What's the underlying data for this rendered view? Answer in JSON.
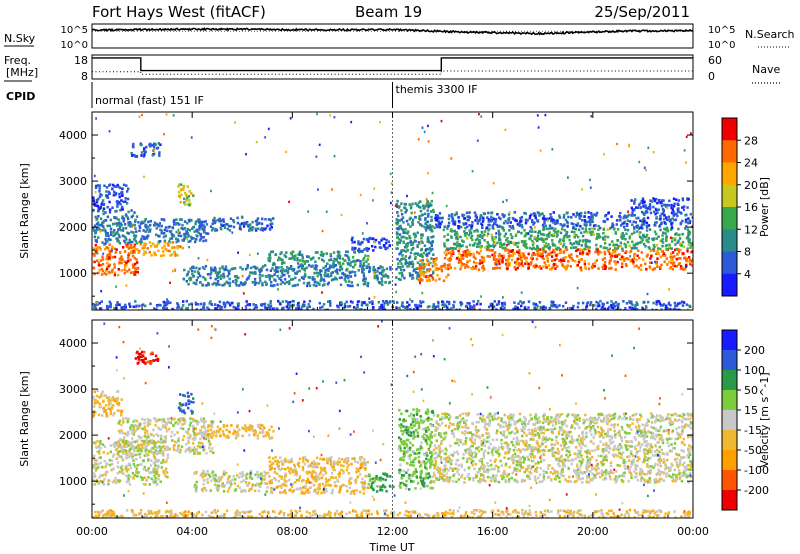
{
  "header": {
    "title": "Fort Hays West (fitACF)",
    "beam": "Beam 19",
    "date": "25/Sep/2011"
  },
  "panels": {
    "nsky_label": "N.Sky",
    "nsearch_label": "N.Search",
    "freq_label_1": "Freq.",
    "freq_label_2": "[MHz]",
    "nave_label": "Nave",
    "cpid_label": "CPID",
    "nsky_ticks": [
      "10^5",
      "10^0"
    ],
    "nsearch_ticks": [
      "10^5",
      "10^0"
    ],
    "freq_ticks": [
      "18",
      "8"
    ],
    "nave_ticks": [
      "60",
      "0"
    ],
    "cpid_segments": [
      {
        "label": "normal (fast) 151 IF",
        "start_hour": 0
      },
      {
        "label": "themis 3300 IF",
        "start_hour": 12
      }
    ]
  },
  "colorbars": {
    "power_label": "Power [dB]",
    "power_ticks": [
      "28",
      "24",
      "20",
      "16",
      "12",
      "8",
      "4"
    ],
    "velocity_label": "Velocity [m s^-1]",
    "velocity_ticks": [
      "200",
      "100",
      "50",
      "15",
      "-15",
      "-50",
      "-100",
      "-200"
    ]
  },
  "chart_data": [
    {
      "type": "line",
      "name_label": "N.Sky / N.Search",
      "x_unit": "hour",
      "xlim": [
        0,
        24
      ],
      "ylim": [
        0,
        5
      ],
      "series": [
        {
          "name": "N.Sky",
          "x": [
            0,
            3,
            6,
            9,
            12,
            15,
            18,
            21,
            24
          ],
          "values": [
            3.7,
            3.9,
            3.9,
            3.8,
            3.8,
            3.3,
            3.0,
            3.5,
            3.6
          ]
        },
        {
          "name": "N.Search",
          "x": [
            0,
            24
          ],
          "values": [
            3.5,
            3.5
          ]
        }
      ]
    },
    {
      "type": "line",
      "x_unit": "hour",
      "xlim": [
        0,
        24
      ],
      "series": [
        {
          "name": "Freq.",
          "ylim": [
            8,
            18
          ],
          "x": [
            0,
            1.95,
            1.95,
            13.95,
            13.95,
            24
          ],
          "values": [
            16.8,
            16.8,
            11.5,
            11.5,
            16.8,
            16.8
          ]
        },
        {
          "name": "Nave",
          "ylim": [
            0,
            60
          ],
          "x": [
            0,
            1.95,
            1.95,
            13.95,
            13.95,
            24
          ],
          "values": [
            18,
            18,
            12,
            12,
            20,
            20
          ]
        }
      ]
    },
    {
      "type": "heatmap",
      "quantity": "Power",
      "units": "dB",
      "xlabel": "Time UT",
      "ylabel": "Slant Range [km]",
      "xlim": [
        0,
        24
      ],
      "ylim": [
        200,
        4500
      ],
      "x_ticks": [
        "00:00",
        "04:00",
        "08:00",
        "12:00",
        "16:00",
        "20:00",
        "00:00"
      ],
      "y_ticks": [
        1000,
        2000,
        3000,
        4000
      ],
      "clim": [
        0,
        32
      ],
      "levels": [
        {
          "max": 4,
          "color": "#1a1aff"
        },
        {
          "max": 8,
          "color": "#2c5ad8"
        },
        {
          "max": 12,
          "color": "#2a8c8a"
        },
        {
          "max": 16,
          "color": "#38a84c"
        },
        {
          "max": 20,
          "color": "#c4c820"
        },
        {
          "max": 24,
          "color": "#ffa500"
        },
        {
          "max": 28,
          "color": "#ff6a00"
        },
        {
          "max": 32,
          "color": "#ee0000"
        }
      ],
      "bands": [
        {
          "t0": 0.0,
          "t1": 1.8,
          "r0": 980,
          "r1": 1650,
          "p": 26
        },
        {
          "t0": 0.0,
          "t1": 1.8,
          "r0": 1650,
          "r1": 2400,
          "p": 9
        },
        {
          "t0": 0.0,
          "t1": 1.4,
          "r0": 2400,
          "r1": 2950,
          "p": 5
        },
        {
          "t0": 1.8,
          "t1": 3.6,
          "r0": 1400,
          "r1": 1700,
          "p": 22
        },
        {
          "t0": 1.8,
          "t1": 4.6,
          "r0": 1700,
          "r1": 2200,
          "p": 8
        },
        {
          "t0": 3.4,
          "t1": 4.0,
          "r0": 2500,
          "r1": 2950,
          "p": 18
        },
        {
          "t0": 1.5,
          "t1": 2.7,
          "r0": 3550,
          "r1": 3850,
          "p": 6
        },
        {
          "t0": 4.0,
          "t1": 7.2,
          "r0": 1950,
          "r1": 2250,
          "p": 7
        },
        {
          "t0": 3.6,
          "t1": 11.9,
          "r0": 750,
          "r1": 1200,
          "p": 9
        },
        {
          "t0": 7.0,
          "t1": 11.0,
          "r0": 1200,
          "r1": 1500,
          "p": 11
        },
        {
          "t0": 10.3,
          "t1": 11.9,
          "r0": 1500,
          "r1": 1800,
          "p": 5
        },
        {
          "t0": 12.1,
          "t1": 13.6,
          "r0": 850,
          "r1": 2600,
          "p": 10
        },
        {
          "t0": 13.0,
          "t1": 14.2,
          "r0": 850,
          "r1": 1350,
          "p": 25
        },
        {
          "t0": 14.0,
          "t1": 24.0,
          "r0": 1100,
          "r1": 1550,
          "p": 26
        },
        {
          "t0": 14.0,
          "t1": 24.0,
          "r0": 1550,
          "r1": 2000,
          "p": 13
        },
        {
          "t0": 13.6,
          "t1": 24.0,
          "r0": 2000,
          "r1": 2350,
          "p": 6
        },
        {
          "t0": 21.5,
          "t1": 24.0,
          "r0": 2350,
          "r1": 2650,
          "p": 5
        },
        {
          "t0": 0.0,
          "t1": 24.0,
          "r0": 200,
          "r1": 420,
          "p": 6
        }
      ]
    },
    {
      "type": "heatmap",
      "quantity": "Velocity",
      "units": "m s^-1",
      "xlabel": "Time UT",
      "ylabel": "Slant Range [km]",
      "xlim": [
        0,
        24
      ],
      "ylim": [
        200,
        4500
      ],
      "x_ticks": [
        "00:00",
        "04:00",
        "08:00",
        "12:00",
        "16:00",
        "20:00",
        "00:00"
      ],
      "y_ticks": [
        1000,
        2000,
        3000,
        4000
      ],
      "clim": [
        -250,
        250
      ],
      "levels": [
        {
          "max": -200,
          "color": "#ee0000"
        },
        {
          "max": -100,
          "color": "#ff5500"
        },
        {
          "max": -50,
          "color": "#ff9f00"
        },
        {
          "max": -15,
          "color": "#f0b830"
        },
        {
          "max": 15,
          "color": "#c8c8c8"
        },
        {
          "max": 50,
          "color": "#7ccd3c"
        },
        {
          "max": 100,
          "color": "#2a9a48"
        },
        {
          "max": 200,
          "color": "#2c5ad8"
        },
        {
          "max": 250,
          "color": "#1a1aff"
        }
      ],
      "bands": [
        {
          "t0": 0.0,
          "t1": 3.0,
          "r0": 950,
          "r1": 1900,
          "v": 0
        },
        {
          "t0": 1.0,
          "t1": 4.8,
          "r0": 1600,
          "r1": 2400,
          "v": 0
        },
        {
          "t0": 0.0,
          "t1": 1.2,
          "r0": 2400,
          "r1": 3000,
          "v": -30
        },
        {
          "t0": 3.4,
          "t1": 4.0,
          "r0": 2500,
          "r1": 2950,
          "v": 120
        },
        {
          "t0": 1.6,
          "t1": 2.6,
          "r0": 3550,
          "r1": 3850,
          "v": -220
        },
        {
          "t0": 4.2,
          "t1": 7.2,
          "r0": 1950,
          "r1": 2250,
          "v": -30
        },
        {
          "t0": 4.0,
          "t1": 7.0,
          "r0": 800,
          "r1": 1250,
          "v": 0
        },
        {
          "t0": 7.0,
          "t1": 11.0,
          "r0": 750,
          "r1": 1550,
          "v": -30
        },
        {
          "t0": 11.0,
          "t1": 12.0,
          "r0": 800,
          "r1": 1200,
          "v": 70
        },
        {
          "t0": 12.2,
          "t1": 13.6,
          "r0": 850,
          "r1": 2600,
          "v": 40
        },
        {
          "t0": 13.6,
          "t1": 24.0,
          "r0": 1000,
          "r1": 1900,
          "v": 0
        },
        {
          "t0": 13.6,
          "t1": 24.0,
          "r0": 1900,
          "r1": 2500,
          "v": 0
        },
        {
          "t0": 0.0,
          "t1": 24.0,
          "r0": 200,
          "r1": 400,
          "v": -30
        }
      ]
    }
  ]
}
